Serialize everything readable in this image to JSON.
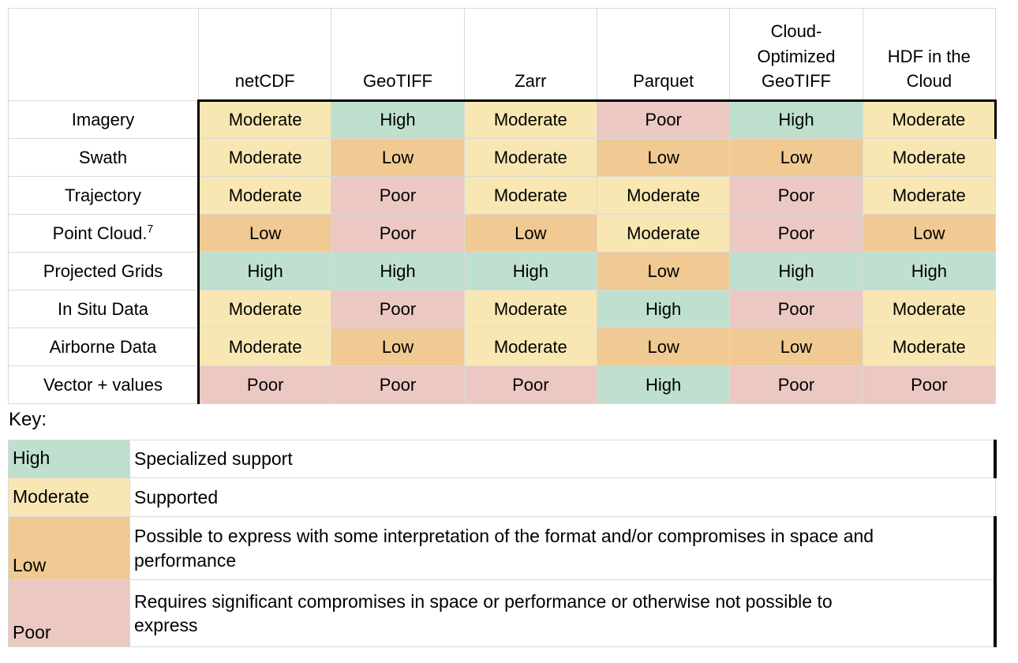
{
  "matrix": {
    "columns": [
      "netCDF",
      "GeoTIFF",
      "Zarr",
      "Parquet",
      "Cloud-Optimized GeoTIFF",
      "HDF in the Cloud"
    ],
    "rows": [
      {
        "label": "Imagery",
        "cells": [
          "Moderate",
          "High",
          "Moderate",
          "Poor",
          "High",
          "Moderate"
        ]
      },
      {
        "label": "Swath",
        "cells": [
          "Moderate",
          "Low",
          "Moderate",
          "Low",
          "Low",
          "Moderate"
        ]
      },
      {
        "label": "Trajectory",
        "cells": [
          "Moderate",
          "Poor",
          "Moderate",
          "Moderate",
          "Poor",
          "Moderate"
        ]
      },
      {
        "label": "Point Cloud.",
        "sup": "7",
        "cells": [
          "Low",
          "Poor",
          "Low",
          "Moderate",
          "Poor",
          "Low"
        ]
      },
      {
        "label": "Projected Grids",
        "cells": [
          "High",
          "High",
          "High",
          "Low",
          "High",
          "High"
        ]
      },
      {
        "label": "In Situ Data",
        "cells": [
          "Moderate",
          "Poor",
          "Moderate",
          "High",
          "Poor",
          "Moderate"
        ]
      },
      {
        "label": "Airborne Data",
        "cells": [
          "Moderate",
          "Low",
          "Moderate",
          "Low",
          "Low",
          "Moderate"
        ]
      },
      {
        "label": "Vector + values",
        "cells": [
          "Poor",
          "Poor",
          "Poor",
          "High",
          "Poor",
          "Poor"
        ]
      }
    ]
  },
  "rating_colors": {
    "High": "#bfe0ce",
    "Moderate": "#f8e7b2",
    "Low": "#f0ca92",
    "Poor": "#ebc8c2"
  },
  "key": {
    "heading": "Key:",
    "entries": [
      {
        "rating": "High",
        "description": "Specialized support"
      },
      {
        "rating": "Moderate",
        "description": "Supported"
      },
      {
        "rating": "Low",
        "description": "Possible to express with some interpretation of the format and/or compromises in space and\nperformance"
      },
      {
        "rating": "Poor",
        "description": "Requires significant compromises in space or performance or otherwise not possible to\nexpress"
      }
    ]
  }
}
